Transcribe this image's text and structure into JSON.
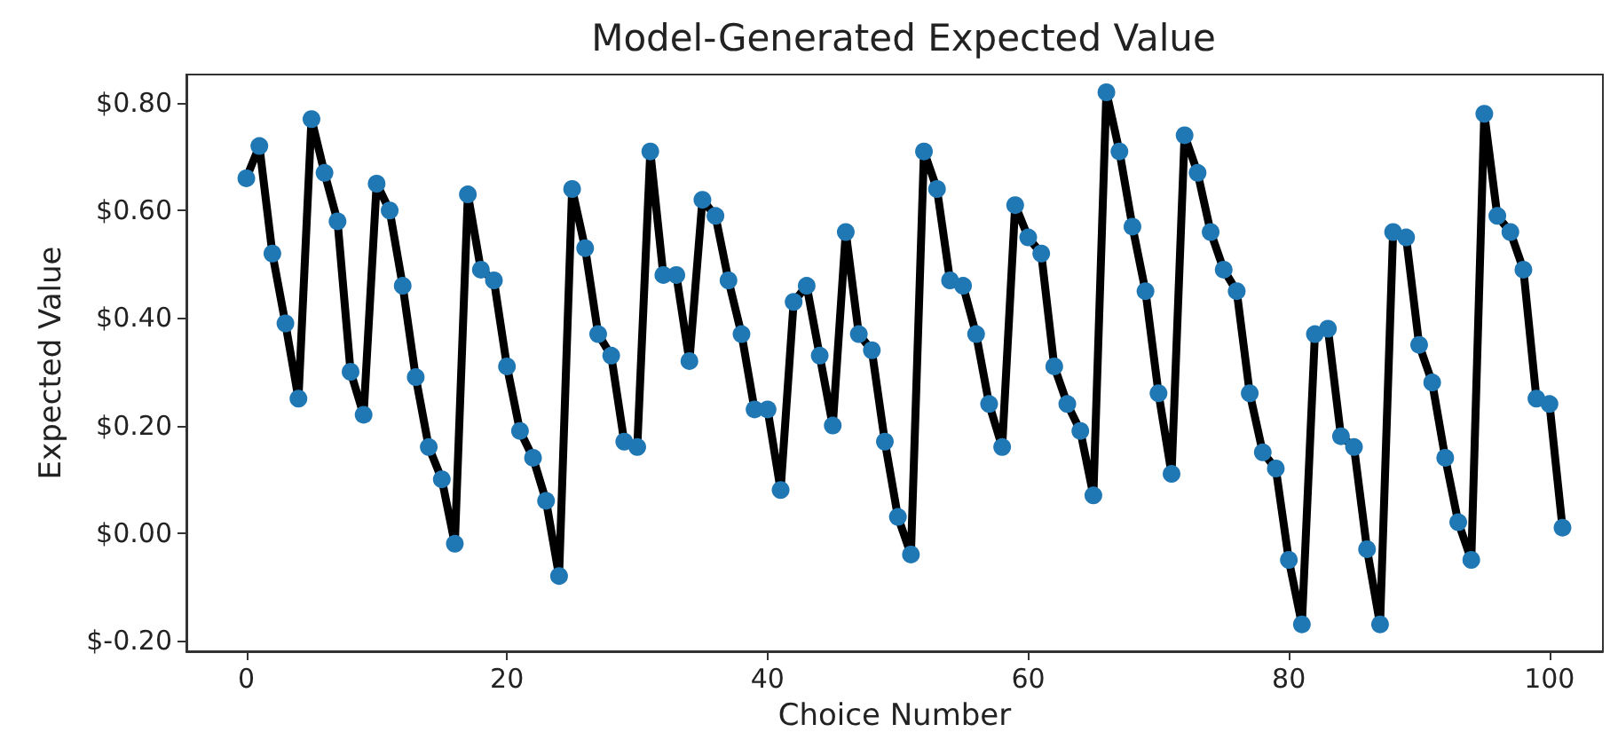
{
  "chart_data": {
    "type": "line",
    "title": "Model-Generated Expected Value",
    "xlabel": "Choice Number",
    "ylabel": "Expected Value",
    "x": [
      0,
      1,
      2,
      3,
      4,
      5,
      6,
      7,
      8,
      9,
      10,
      11,
      12,
      13,
      14,
      15,
      16,
      17,
      18,
      19,
      20,
      21,
      22,
      23,
      24,
      25,
      26,
      27,
      28,
      29,
      30,
      31,
      32,
      33,
      34,
      35,
      36,
      37,
      38,
      39,
      40,
      41,
      42,
      43,
      44,
      45,
      46,
      47,
      48,
      49,
      50,
      51,
      52,
      53,
      54,
      55,
      56,
      57,
      58,
      59,
      60,
      61,
      62,
      63,
      64,
      65,
      66,
      67,
      68,
      69,
      70,
      71,
      72,
      73,
      74,
      75,
      76,
      77,
      78,
      79,
      80,
      81,
      82,
      83,
      84,
      85,
      86,
      87,
      88,
      89,
      90,
      91,
      92,
      93,
      94,
      95,
      96,
      97,
      98,
      99,
      100,
      101
    ],
    "series": [
      {
        "color": "#1f77b4",
        "values": [
          0.66,
          0.72,
          0.52,
          0.39,
          0.25,
          0.77,
          0.67,
          0.58,
          0.3,
          0.22,
          0.65,
          0.6,
          0.46,
          0.29,
          0.16,
          0.1,
          -0.02,
          0.63,
          0.49,
          0.47,
          0.31,
          0.19,
          0.14,
          0.06,
          -0.08,
          0.64,
          0.53,
          0.37,
          0.33,
          0.17,
          0.16,
          0.71,
          0.48,
          0.48,
          0.32,
          0.62,
          0.59,
          0.47,
          0.37,
          0.23,
          0.23,
          0.08,
          0.43,
          0.46,
          0.33,
          0.2,
          0.56,
          0.37,
          0.34,
          0.17,
          0.03,
          -0.04,
          0.71,
          0.64,
          0.47,
          0.46,
          0.37,
          0.24,
          0.16,
          0.61,
          0.55,
          0.52,
          0.31,
          0.24,
          0.19,
          0.07,
          0.82,
          0.71,
          0.57,
          0.45,
          0.26,
          0.11,
          0.74,
          0.67,
          0.56,
          0.49,
          0.45,
          0.26,
          0.15,
          0.12,
          -0.05,
          -0.17,
          0.37,
          0.38,
          0.18,
          0.16,
          -0.03,
          -0.17,
          0.56,
          0.55,
          0.35,
          0.28,
          0.14,
          0.02,
          -0.05,
          0.78,
          0.59,
          0.56,
          0.49,
          0.25,
          0.24,
          0.01
        ]
      }
    ],
    "xlim": [
      -4.6,
      104.1
    ],
    "xticks": [
      0,
      20,
      40,
      60,
      80,
      100
    ],
    "ylim": [
      -0.22,
      0.853
    ],
    "yticks": [
      {
        "value": -0.2,
        "label": "$-0.20"
      },
      {
        "value": 0,
        "label": "$0.00"
      },
      {
        "value": 0.2,
        "label": "$0.20"
      },
      {
        "value": 0.4,
        "label": "$0.40"
      },
      {
        "value": 0.6,
        "label": "$0.60"
      },
      {
        "value": 0.8,
        "label": "$0.80"
      }
    ],
    "marker": "circle",
    "line_style": "solid",
    "grid": false
  }
}
